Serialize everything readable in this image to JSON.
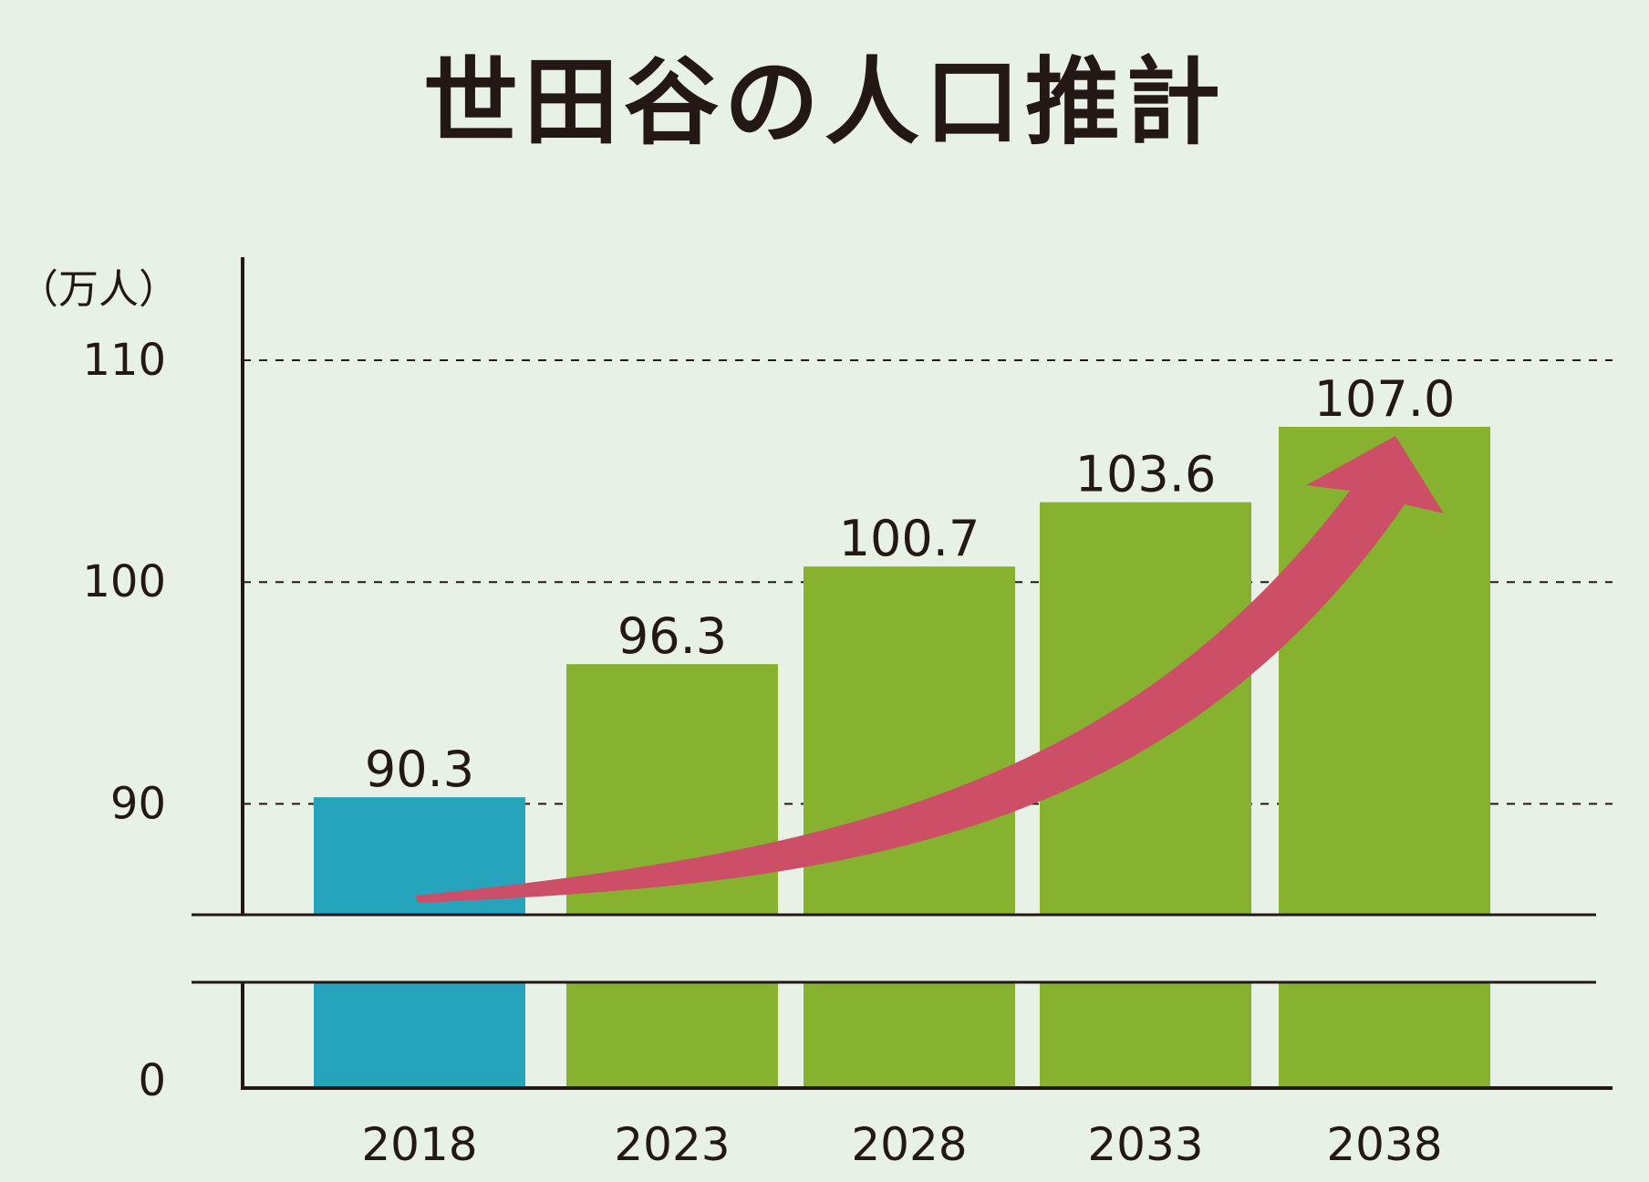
{
  "chart_data": {
    "type": "bar",
    "title": "世田谷の人口推計",
    "unit_label": "（万人）",
    "categories": [
      "2018",
      "2023",
      "2028",
      "2033",
      "2038"
    ],
    "values": [
      90.3,
      96.3,
      100.7,
      103.6,
      107.0
    ],
    "value_labels": [
      "90.3",
      "96.3",
      "100.7",
      "103.6",
      "107.0"
    ],
    "y_ticks": [
      {
        "value": 0,
        "label": "0"
      },
      {
        "value": 90,
        "label": "90"
      },
      {
        "value": 100,
        "label": "100"
      },
      {
        "value": 110,
        "label": "110"
      }
    ],
    "axis_break": {
      "from": 0,
      "to": 85
    },
    "ylim": [
      0,
      110
    ],
    "grid": "dashed horizontal at 90, 100, 110",
    "bar_colors": [
      "#26a4bb",
      "#86b230",
      "#86b230",
      "#86b230",
      "#86b230"
    ],
    "trend_arrow": {
      "color": "#cd4e67",
      "direction": "rising from 2018 to 2038"
    }
  }
}
